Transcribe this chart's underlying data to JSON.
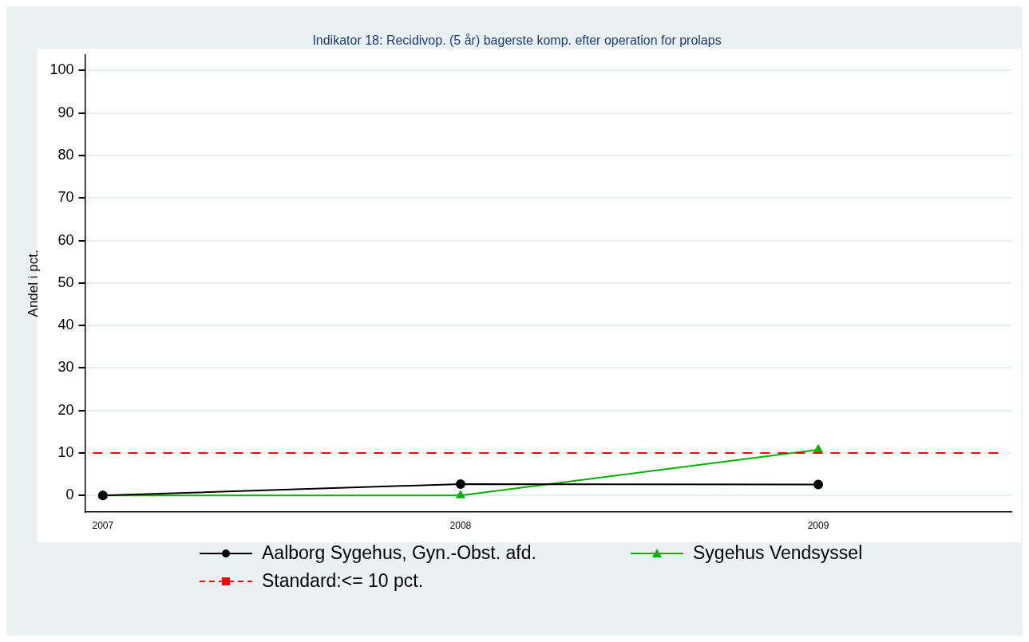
{
  "chart_data": {
    "type": "line",
    "title": "Indikator 18: Recidivop. (5 år) bagerste komp. efter operation for prolaps",
    "ylabel": "Andel i pct.",
    "x": [
      2007,
      2008,
      2009
    ],
    "series": [
      {
        "name": "Aalborg Sygehus, Gyn.-Obst. afd.",
        "color": "#000000",
        "values": [
          0,
          2.7,
          2.6
        ],
        "marker": "circle"
      },
      {
        "name": "Sygehus Vendsyssel",
        "color": "#00b000",
        "values": [
          0,
          0,
          10.8
        ],
        "marker": "triangle"
      }
    ],
    "ref_lines": [
      {
        "axis": "y",
        "value": 10,
        "label": "Standard:<= 10 pct.",
        "color": "#ff0000",
        "line_style": "dashed"
      }
    ],
    "xlim": [
      2006.95,
      2009.54
    ],
    "xticks": [
      2007,
      2008,
      2009
    ],
    "ylim": [
      -3.8,
      103.6
    ],
    "yticks": [
      0,
      10,
      20,
      30,
      40,
      50,
      60,
      70,
      80,
      90,
      100
    ],
    "grid": "y",
    "legend": "bottom",
    "line_style": "solid"
  }
}
